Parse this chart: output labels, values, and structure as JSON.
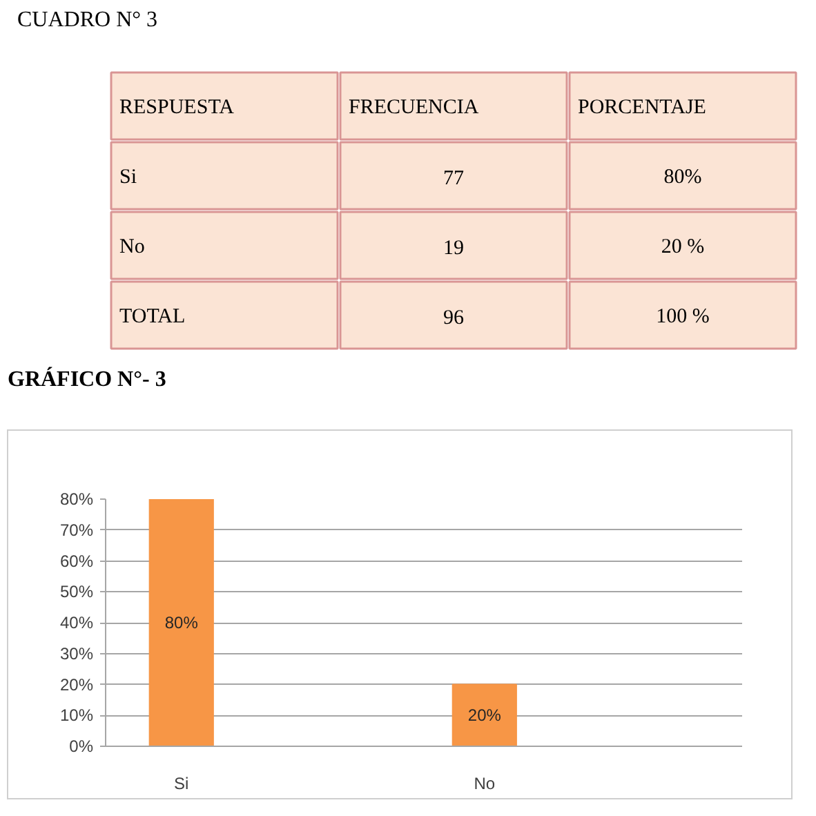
{
  "chart_data": [
    {
      "type": "other",
      "title": "CUADRO N° 3",
      "categories": [
        "RESPUESTA",
        "FRECUENCIA",
        "PORCENTAJE"
      ],
      "annotations": [
        "Si",
        "77",
        "80%",
        "No",
        "19",
        "20 %",
        "TOTAL",
        "96",
        "100 %"
      ]
    },
    {
      "type": "bar",
      "title": "GRÁFICO N°- 3",
      "categories": [
        "Si",
        "No"
      ],
      "values": [
        80,
        20
      ],
      "color": "#f79646",
      "ylim": [
        0,
        80
      ],
      "yticks": [
        {
          "value": 0,
          "label": "0%"
        },
        {
          "value": 10,
          "label": "10%"
        },
        {
          "value": 20,
          "label": "20%"
        },
        {
          "value": 30,
          "label": "30%"
        },
        {
          "value": 40,
          "label": "40%"
        },
        {
          "value": 50,
          "label": "50%"
        },
        {
          "value": 60,
          "label": "60%"
        },
        {
          "value": 70,
          "label": "70%"
        },
        {
          "value": 80,
          "label": "80%"
        }
      ],
      "grid": "y",
      "value_labels": [
        "80%",
        "20%"
      ]
    }
  ]
}
